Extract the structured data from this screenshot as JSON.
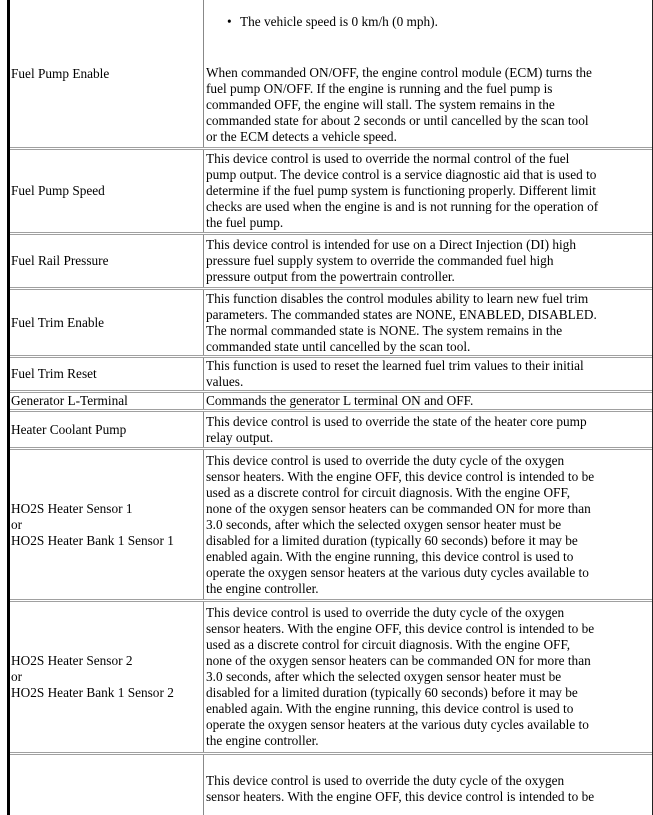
{
  "rows": [
    {
      "label": [
        "Fuel Pump Enable"
      ],
      "bullet": "The vehicle speed is 0 km/h (0 mph).",
      "desc": [
        "When commanded ON/OFF, the engine control module (ECM) turns the",
        "fuel pump ON/OFF. If the engine is running and the fuel pump is",
        "commanded OFF, the engine will stall. The system remains in the",
        "commanded state for about 2 seconds or until cancelled by the scan tool",
        "or the ECM detects a vehicle speed."
      ]
    },
    {
      "label": [
        "Fuel Pump Speed"
      ],
      "desc": [
        "This device control is used to override the normal control of the fuel",
        "pump output. The device control is a service diagnostic aid that is used to",
        "determine if the fuel pump system is functioning properly. Different limit",
        "checks are used when the engine is and is not running for the operation of",
        "the fuel pump."
      ]
    },
    {
      "label": [
        "Fuel Rail Pressure"
      ],
      "desc": [
        "This device control is intended for use on a Direct Injection (DI) high",
        "pressure fuel supply system to override the commanded fuel high",
        "pressure output from the powertrain controller."
      ]
    },
    {
      "label": [
        "Fuel Trim Enable"
      ],
      "desc": [
        "This function disables the control modules ability to learn new fuel trim",
        "parameters. The commanded states are NONE, ENABLED, DISABLED.",
        "The normal commanded state is NONE. The system remains in the",
        "commanded state until cancelled by the scan tool."
      ]
    },
    {
      "label": [
        "Fuel Trim Reset"
      ],
      "desc": [
        "This function is used to reset the learned fuel trim values to their initial",
        "values."
      ]
    },
    {
      "label": [
        "Generator L-Terminal"
      ],
      "desc": [
        "Commands the generator L terminal ON and OFF."
      ]
    },
    {
      "label": [
        "Heater Coolant Pump"
      ],
      "desc": [
        "This device control is used to override the state of the heater core pump",
        "relay output."
      ]
    },
    {
      "label": [
        "HO2S Heater Sensor 1",
        "or",
        "HO2S Heater Bank 1 Sensor 1"
      ],
      "desc": [
        "This device control is used to override the duty cycle of the oxygen",
        "sensor heaters. With the engine OFF, this device control is intended to be",
        "used as a discrete control for circuit diagnosis. With the engine OFF,",
        "none of the oxygen sensor heaters can be commanded ON for more than",
        "3.0 seconds, after which the selected oxygen sensor heater must be",
        "disabled for a limited duration (typically 60 seconds) before it may be",
        "enabled again. With the engine running, this device control is used to",
        "operate the oxygen sensor heaters at the various duty cycles available to",
        "the engine controller."
      ]
    },
    {
      "label": [
        "HO2S Heater Sensor 2",
        "or",
        "HO2S Heater Bank 1 Sensor 2"
      ],
      "desc": [
        "This device control is used to override the duty cycle of the oxygen",
        "sensor heaters. With the engine OFF, this device control is intended to be",
        "used as a discrete control for circuit diagnosis. With the engine OFF,",
        "none of the oxygen sensor heaters can be commanded ON for more than",
        "3.0 seconds, after which the selected oxygen sensor heater must be",
        "disabled for a limited duration (typically 60 seconds) before it may be",
        "enabled again. With the engine running, this device control is used to",
        "operate the oxygen sensor heaters at the various duty cycles available to",
        "the engine controller."
      ]
    },
    {
      "label": [],
      "desc": [
        "This device control is used to override the duty cycle of the oxygen",
        "sensor heaters. With the engine OFF, this device control is intended to be"
      ]
    }
  ]
}
